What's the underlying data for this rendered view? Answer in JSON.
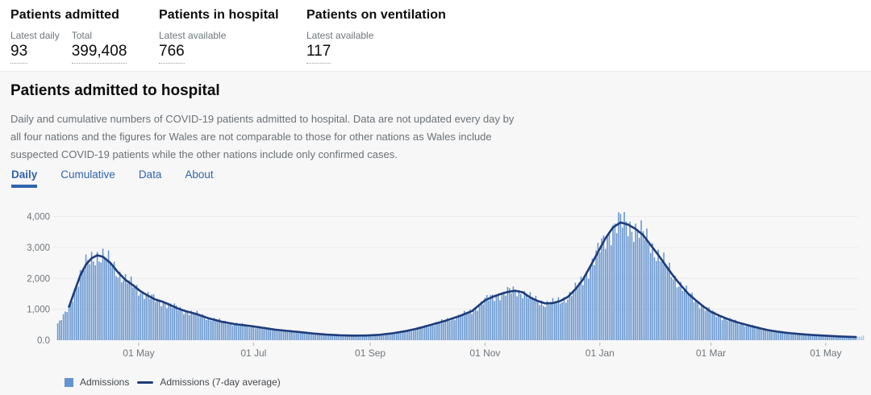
{
  "stats": {
    "admitted": {
      "title": "Patients admitted",
      "metrics": [
        {
          "label": "Latest daily",
          "value": "93"
        },
        {
          "label": "Total",
          "value": "399,408"
        }
      ]
    },
    "in_hospital": {
      "title": "Patients in hospital",
      "metrics": [
        {
          "label": "Latest available",
          "value": "766"
        }
      ]
    },
    "ventilation": {
      "title": "Patients on ventilation",
      "metrics": [
        {
          "label": "Latest available",
          "value": "117"
        }
      ]
    }
  },
  "section": {
    "heading": "Patients admitted to hospital",
    "description_lines": [
      "Daily and cumulative numbers of COVID-19 patients admitted to hospital. Data are not updated every day by",
      "all four nations and the figures for Wales are not comparable to those for other nations as Wales include",
      "suspected COVID-19 patients while the other nations include only confirmed cases."
    ],
    "tabs": [
      {
        "label": "Daily",
        "active": true
      },
      {
        "label": "Cumulative",
        "active": false
      },
      {
        "label": "Data",
        "active": false
      },
      {
        "label": "About",
        "active": false
      }
    ]
  },
  "colors": {
    "accent_blue": "#3164ac",
    "bar": "#6494ce",
    "bar_provisional": "#adc8e8",
    "line": "#1e3c7b",
    "section_bg": "#f7f7f8",
    "gridline": "#ebebed",
    "axis_text": "#6f777b",
    "text_primary": "#0b0c0c",
    "text_secondary": "#6f777b"
  },
  "chart_data": {
    "type": "bar",
    "title": "Daily COVID-19 patients admitted to hospital with 7-day average",
    "start_date": "2020-03-19",
    "end_date": "2021-05-21",
    "line_end_date": "2021-05-17",
    "provisional_start_date": "2021-05-18",
    "ylim": [
      0,
      4250
    ],
    "grid": true,
    "legend_position": "bottom-left",
    "series": [
      {
        "name": "Admissions",
        "type": "bar",
        "color": "#6494ce",
        "provisional_color": "#adc8e8"
      },
      {
        "name": "Admissions (7-day average)",
        "type": "line",
        "color": "#1e3c7b"
      }
    ],
    "y_ticks": [
      {
        "label": "0.0",
        "value": 0
      },
      {
        "label": "1,000",
        "value": 1000
      },
      {
        "label": "2,000",
        "value": 2000
      },
      {
        "label": "3,000",
        "value": 3000
      },
      {
        "label": "4,000",
        "value": 4000
      }
    ],
    "x_ticks": [
      {
        "label": "01 May",
        "date": "2020-05-01"
      },
      {
        "label": "01 Jul",
        "date": "2020-07-01"
      },
      {
        "label": "01 Sep",
        "date": "2020-09-01"
      },
      {
        "label": "01 Nov",
        "date": "2020-11-01"
      },
      {
        "label": "01 Jan",
        "date": "2021-01-01"
      },
      {
        "label": "01 Mar",
        "date": "2021-03-01"
      },
      {
        "label": "01 May",
        "date": "2021-05-01"
      }
    ],
    "avg_anchors": [
      [
        "2020-03-19",
        520
      ],
      [
        "2020-03-22",
        760
      ],
      [
        "2020-03-25",
        1080
      ],
      [
        "2020-03-28",
        1600
      ],
      [
        "2020-03-31",
        2100
      ],
      [
        "2020-04-03",
        2450
      ],
      [
        "2020-04-06",
        2650
      ],
      [
        "2020-04-09",
        2750
      ],
      [
        "2020-04-12",
        2700
      ],
      [
        "2020-04-16",
        2500
      ],
      [
        "2020-04-20",
        2200
      ],
      [
        "2020-04-24",
        1950
      ],
      [
        "2020-04-28",
        1780
      ],
      [
        "2020-05-02",
        1580
      ],
      [
        "2020-05-06",
        1440
      ],
      [
        "2020-05-10",
        1310
      ],
      [
        "2020-05-14",
        1240
      ],
      [
        "2020-05-18",
        1130
      ],
      [
        "2020-05-22",
        1020
      ],
      [
        "2020-05-26",
        940
      ],
      [
        "2020-06-01",
        840
      ],
      [
        "2020-06-07",
        710
      ],
      [
        "2020-06-14",
        600
      ],
      [
        "2020-06-21",
        520
      ],
      [
        "2020-06-28",
        470
      ],
      [
        "2020-07-05",
        410
      ],
      [
        "2020-07-12",
        345
      ],
      [
        "2020-07-19",
        300
      ],
      [
        "2020-07-26",
        260
      ],
      [
        "2020-08-02",
        215
      ],
      [
        "2020-08-09",
        180
      ],
      [
        "2020-08-16",
        158
      ],
      [
        "2020-08-23",
        148
      ],
      [
        "2020-08-30",
        152
      ],
      [
        "2020-09-06",
        175
      ],
      [
        "2020-09-13",
        225
      ],
      [
        "2020-09-20",
        295
      ],
      [
        "2020-09-27",
        390
      ],
      [
        "2020-10-04",
        510
      ],
      [
        "2020-10-11",
        630
      ],
      [
        "2020-10-18",
        770
      ],
      [
        "2020-10-25",
        940
      ],
      [
        "2020-11-01",
        1290
      ],
      [
        "2020-11-05",
        1400
      ],
      [
        "2020-11-09",
        1490
      ],
      [
        "2020-11-13",
        1560
      ],
      [
        "2020-11-17",
        1600
      ],
      [
        "2020-11-21",
        1550
      ],
      [
        "2020-11-25",
        1380
      ],
      [
        "2020-11-29",
        1270
      ],
      [
        "2020-12-03",
        1190
      ],
      [
        "2020-12-07",
        1200
      ],
      [
        "2020-12-11",
        1270
      ],
      [
        "2020-12-15",
        1400
      ],
      [
        "2020-12-19",
        1650
      ],
      [
        "2020-12-23",
        1960
      ],
      [
        "2020-12-27",
        2400
      ],
      [
        "2020-12-31",
        2850
      ],
      [
        "2021-01-04",
        3300
      ],
      [
        "2021-01-08",
        3650
      ],
      [
        "2021-01-12",
        3810
      ],
      [
        "2021-01-16",
        3740
      ],
      [
        "2021-01-20",
        3600
      ],
      [
        "2021-01-24",
        3400
      ],
      [
        "2021-01-28",
        3080
      ],
      [
        "2021-02-01",
        2760
      ],
      [
        "2021-02-05",
        2420
      ],
      [
        "2021-02-09",
        2080
      ],
      [
        "2021-02-13",
        1780
      ],
      [
        "2021-02-17",
        1500
      ],
      [
        "2021-02-21",
        1290
      ],
      [
        "2021-02-25",
        1090
      ],
      [
        "2021-03-01",
        920
      ],
      [
        "2021-03-06",
        780
      ],
      [
        "2021-03-11",
        660
      ],
      [
        "2021-03-16",
        560
      ],
      [
        "2021-03-21",
        480
      ],
      [
        "2021-03-26",
        400
      ],
      [
        "2021-03-31",
        330
      ],
      [
        "2021-04-05",
        280
      ],
      [
        "2021-04-10",
        240
      ],
      [
        "2021-04-15",
        210
      ],
      [
        "2021-04-20",
        185
      ],
      [
        "2021-04-25",
        165
      ],
      [
        "2021-04-30",
        148
      ],
      [
        "2021-05-05",
        132
      ],
      [
        "2021-05-09",
        120
      ],
      [
        "2021-05-13",
        110
      ],
      [
        "2021-05-17",
        103
      ],
      [
        "2021-05-19",
        115
      ],
      [
        "2021-05-21",
        140
      ]
    ]
  }
}
